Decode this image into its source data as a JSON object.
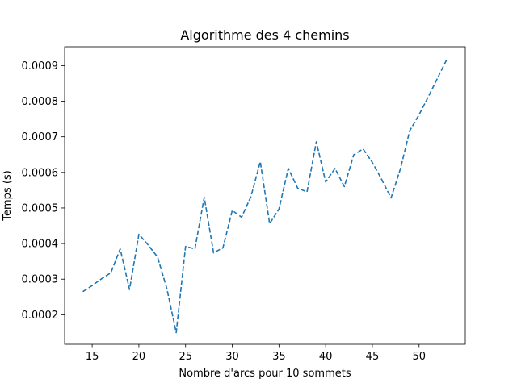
{
  "chart_data": {
    "type": "line",
    "title": "Algorithme des 4 chemins",
    "xlabel": "Nombre d'arcs pour 10 sommets",
    "ylabel": "Temps (s)",
    "xlim": [
      12.05,
      54.95
    ],
    "ylim": [
      0.000117,
      0.000953
    ],
    "xticks": [
      15,
      20,
      25,
      30,
      35,
      40,
      45,
      50
    ],
    "yticks": [
      0.0002,
      0.0003,
      0.0004,
      0.0005,
      0.0006,
      0.0007,
      0.0008,
      0.0009
    ],
    "ytick_labels": [
      "0.0002",
      "0.0003",
      "0.0004",
      "0.0005",
      "0.0006",
      "0.0007",
      "0.0008",
      "0.0009"
    ],
    "grid": false,
    "series": [
      {
        "line_style": "dashed",
        "color": "#1f77b4",
        "x": [
          14,
          15,
          16,
          17,
          18,
          19,
          20,
          21,
          22,
          23,
          24,
          25,
          26,
          27,
          28,
          29,
          30,
          31,
          32,
          33,
          34,
          35,
          36,
          37,
          38,
          39,
          40,
          41,
          42,
          43,
          44,
          45,
          46,
          47,
          48,
          49,
          50,
          51,
          52,
          53
        ],
        "y": [
          0.000265,
          0.000282,
          0.000301,
          0.000318,
          0.000385,
          0.000271,
          0.000426,
          0.000396,
          0.000362,
          0.000273,
          0.00015,
          0.000392,
          0.000385,
          0.00053,
          0.000374,
          0.000388,
          0.000493,
          0.000474,
          0.000532,
          0.00063,
          0.000456,
          0.000497,
          0.000611,
          0.000556,
          0.000545,
          0.000686,
          0.000573,
          0.000611,
          0.00056,
          0.000649,
          0.000666,
          0.000628,
          0.00058,
          0.000528,
          0.00061,
          0.000717,
          0.000762,
          0.000813,
          0.000866,
          0.000919
        ]
      }
    ]
  }
}
